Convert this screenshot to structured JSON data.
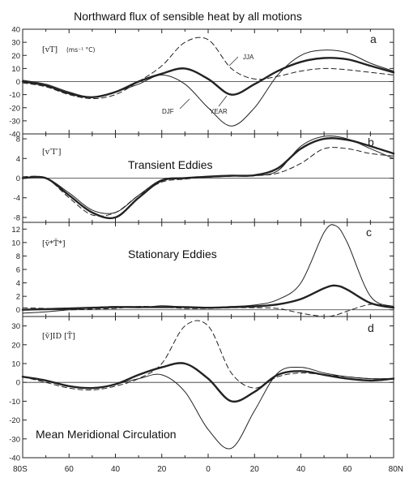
{
  "figure": {
    "title": "Northward flux of sensible heat by all motions",
    "x_tick_labels": [
      "80S",
      "60",
      "40",
      "20",
      "0",
      "20",
      "40",
      "60",
      "80N"
    ]
  },
  "chart_data": [
    {
      "type": "line",
      "panel": "a",
      "label": "[vT]",
      "units": "(ms⁻¹ °C)",
      "x": [
        -80,
        -70,
        -60,
        -50,
        -40,
        -30,
        -20,
        -10,
        0,
        10,
        20,
        30,
        40,
        50,
        60,
        70,
        80
      ],
      "ylim": [
        -40,
        40
      ],
      "yticks": [
        40,
        30,
        20,
        10,
        0,
        -10,
        -20,
        -30,
        -40
      ],
      "annotations": [
        "JJA",
        "DJF",
        "YEAR"
      ],
      "series": [
        {
          "name": "DJF",
          "style": "thin",
          "values": [
            1,
            -2,
            -8,
            -12,
            -8,
            -2,
            5,
            -2,
            -20,
            -34,
            -20,
            5,
            20,
            24,
            22,
            14,
            8
          ]
        },
        {
          "name": "YEAR",
          "style": "thick",
          "values": [
            0,
            -3,
            -9,
            -12,
            -8,
            0,
            6,
            10,
            2,
            -10,
            -2,
            8,
            15,
            18,
            17,
            12,
            7
          ]
        },
        {
          "name": "JJA",
          "style": "dashed",
          "values": [
            -1,
            -4,
            -10,
            -13,
            -10,
            0,
            12,
            30,
            32,
            10,
            2,
            4,
            8,
            10,
            9,
            7,
            5
          ]
        }
      ]
    },
    {
      "type": "line",
      "panel": "b",
      "label": "[v′T′]",
      "overlay": "Transient Eddies",
      "x": [
        -80,
        -70,
        -60,
        -50,
        -40,
        -30,
        -20,
        -10,
        0,
        10,
        20,
        30,
        40,
        50,
        60,
        70,
        80
      ],
      "ylim": [
        -9,
        9
      ],
      "yticks": [
        8,
        4,
        0,
        -4,
        -8
      ],
      "series": [
        {
          "style": "thin",
          "values": [
            0,
            0,
            -3,
            -6.5,
            -7,
            -3.5,
            -0.3,
            0,
            0.2,
            0.4,
            0.5,
            1.5,
            6.5,
            8.5,
            8,
            6,
            4
          ]
        },
        {
          "style": "thick",
          "values": [
            0,
            0,
            -3.5,
            -7,
            -8,
            -4,
            -0.5,
            0,
            0.3,
            0.5,
            0.6,
            2,
            6,
            8,
            7.8,
            6.5,
            5
          ]
        },
        {
          "style": "dashed",
          "values": [
            0.3,
            0,
            -4,
            -7.5,
            -7,
            -3.5,
            -0.8,
            -0.2,
            0.2,
            0.4,
            0.5,
            1,
            3,
            6,
            6,
            5,
            4.5
          ]
        }
      ]
    },
    {
      "type": "line",
      "panel": "c",
      "label": "[v̄*T̄*]",
      "overlay": "Stationary Eddies",
      "x": [
        -80,
        -70,
        -60,
        -50,
        -40,
        -30,
        -20,
        -10,
        0,
        10,
        20,
        30,
        40,
        50,
        55,
        60,
        70,
        80
      ],
      "ylim": [
        -1,
        13
      ],
      "yticks": [
        12,
        10,
        8,
        6,
        4,
        2,
        0
      ],
      "series": [
        {
          "style": "thin",
          "values": [
            -0.5,
            -0.3,
            0,
            0.3,
            0.5,
            0.3,
            0.6,
            0.4,
            0.3,
            0.5,
            0.7,
            1.5,
            4,
            11.5,
            12.5,
            10,
            2,
            0.5
          ]
        },
        {
          "style": "thick",
          "values": [
            0,
            0.1,
            0.2,
            0.3,
            0.4,
            0.4,
            0.4,
            0.4,
            0.3,
            0.4,
            0.5,
            0.8,
            1.6,
            3.2,
            3.6,
            3,
            1,
            0.3
          ]
        },
        {
          "style": "dashed",
          "values": [
            0.3,
            0.2,
            0,
            0.1,
            0.2,
            0.5,
            0.4,
            0.2,
            0.2,
            0.3,
            0.3,
            0.2,
            -0.5,
            -1,
            -0.8,
            -0.2,
            0.8,
            0.5
          ]
        }
      ]
    },
    {
      "type": "line",
      "panel": "d",
      "label": "[v̄]ID [T̄]",
      "overlay": "Mean Meridional Circulation",
      "x": [
        -80,
        -70,
        -60,
        -50,
        -40,
        -30,
        -20,
        -10,
        0,
        10,
        20,
        30,
        40,
        50,
        60,
        70,
        80
      ],
      "ylim": [
        -40,
        35
      ],
      "yticks": [
        30,
        20,
        10,
        0,
        -10,
        -20,
        -30,
        -40
      ],
      "series": [
        {
          "style": "thin",
          "values": [
            3,
            1,
            -2,
            -3,
            -1,
            2,
            4,
            -5,
            -25,
            -35,
            -15,
            5,
            8,
            5,
            3,
            2,
            2
          ]
        },
        {
          "style": "thick",
          "values": [
            3,
            1,
            -2,
            -3,
            -1,
            4,
            8,
            10,
            2,
            -10,
            -5,
            4,
            6,
            4,
            2,
            1,
            2
          ]
        },
        {
          "style": "dashed",
          "values": [
            3,
            0,
            -3,
            -4,
            -2,
            2,
            10,
            30,
            30,
            5,
            -3,
            3,
            5,
            4,
            3,
            2,
            2
          ]
        }
      ]
    }
  ]
}
